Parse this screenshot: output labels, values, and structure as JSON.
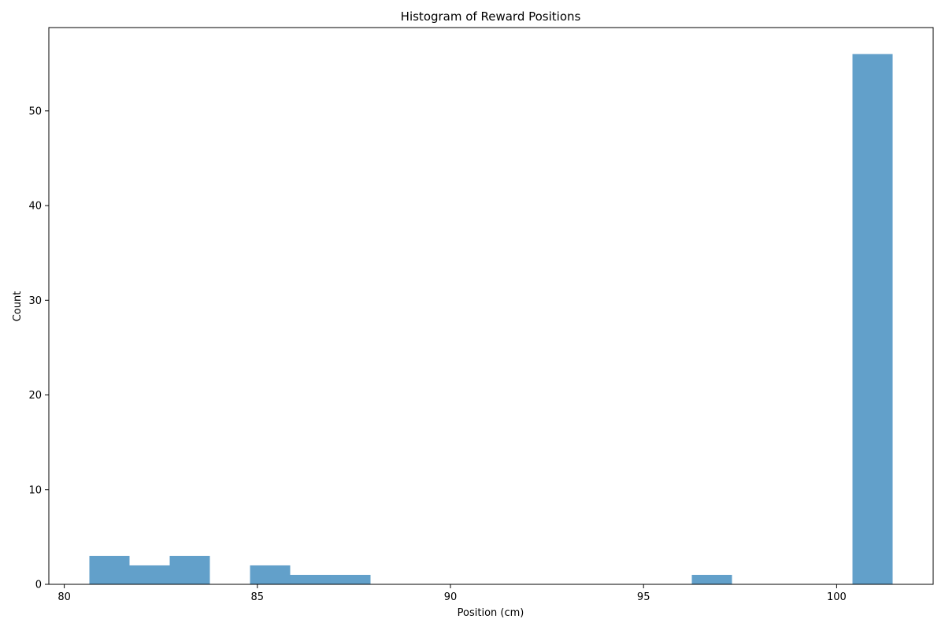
{
  "chart_data": {
    "type": "bar",
    "title": "Histogram of Reward Positions",
    "xlabel": "Position (cm)",
    "ylabel": "Count",
    "xlim": [
      79.6,
      102.5
    ],
    "ylim": [
      0,
      58.8
    ],
    "xticks": [
      80,
      85,
      90,
      95,
      100
    ],
    "yticks": [
      0,
      10,
      20,
      30,
      40,
      50
    ],
    "bar_color": "#1f77b4",
    "bar_opacity": 0.7,
    "grid": false,
    "bins": [
      {
        "x0": 80.65,
        "x1": 81.69,
        "count": 3
      },
      {
        "x0": 81.69,
        "x1": 82.73,
        "count": 2
      },
      {
        "x0": 82.73,
        "x1": 83.77,
        "count": 3
      },
      {
        "x0": 83.77,
        "x1": 84.81,
        "count": 0
      },
      {
        "x0": 84.81,
        "x1": 85.85,
        "count": 2
      },
      {
        "x0": 85.85,
        "x1": 86.89,
        "count": 1
      },
      {
        "x0": 86.89,
        "x1": 87.93,
        "count": 1
      },
      {
        "x0": 87.93,
        "x1": 88.97,
        "count": 0
      },
      {
        "x0": 88.97,
        "x1": 90.01,
        "count": 0
      },
      {
        "x0": 90.01,
        "x1": 91.05,
        "count": 0
      },
      {
        "x0": 91.05,
        "x1": 92.09,
        "count": 0
      },
      {
        "x0": 92.09,
        "x1": 93.13,
        "count": 0
      },
      {
        "x0": 93.13,
        "x1": 94.17,
        "count": 0
      },
      {
        "x0": 94.17,
        "x1": 95.21,
        "count": 0
      },
      {
        "x0": 95.21,
        "x1": 96.25,
        "count": 0
      },
      {
        "x0": 96.25,
        "x1": 97.29,
        "count": 1
      },
      {
        "x0": 97.29,
        "x1": 98.33,
        "count": 0
      },
      {
        "x0": 98.33,
        "x1": 99.37,
        "count": 0
      },
      {
        "x0": 99.37,
        "x1": 100.41,
        "count": 0
      },
      {
        "x0": 100.41,
        "x1": 101.45,
        "count": 56
      }
    ]
  }
}
